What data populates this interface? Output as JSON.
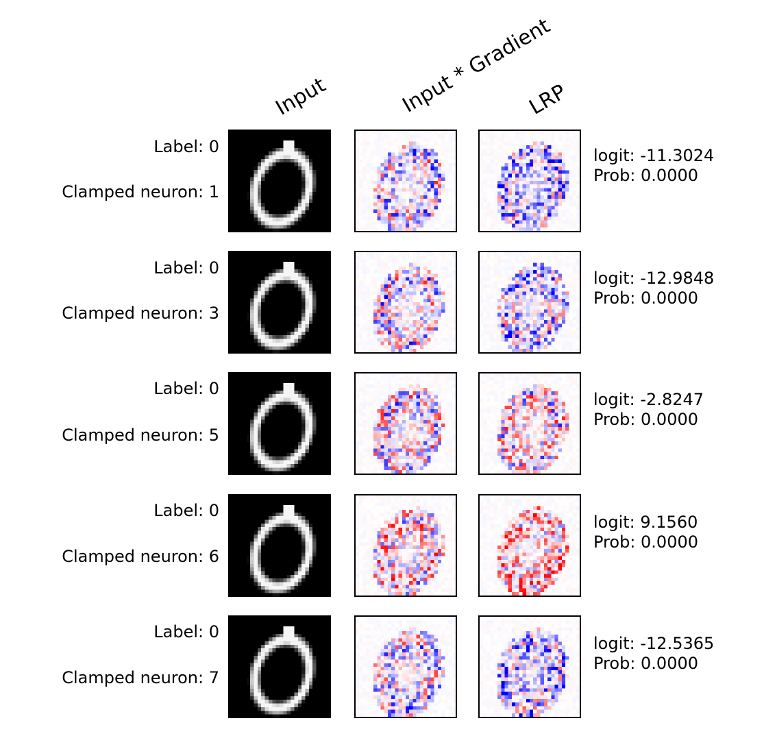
{
  "column_headers": {
    "input": "Input",
    "input_gradient": "Input * Gradient",
    "lrp": "LRP"
  },
  "rows": [
    {
      "label": "Label: 0",
      "clamped": "Clamped neuron: 1",
      "logit": "logit: -11.3024",
      "prob": "Prob: 0.0000"
    },
    {
      "label": "Label: 0",
      "clamped": "Clamped neuron: 3",
      "logit": "logit: -12.9848",
      "prob": "Prob: 0.0000"
    },
    {
      "label": "Label: 0",
      "clamped": "Clamped neuron: 5",
      "logit": "logit: -2.8247",
      "prob": "Prob: 0.0000"
    },
    {
      "label": "Label: 0",
      "clamped": "Clamped neuron: 6",
      "logit": "logit: 9.1560",
      "prob": "Prob: 0.0000"
    },
    {
      "label": "Label: 0",
      "clamped": "Clamped neuron: 7",
      "logit": "logit: -12.5365",
      "prob": "Prob: 0.0000"
    }
  ],
  "colors": {
    "positive": "#ff0000",
    "negative": "#0000ff",
    "neutral": "#ffffff",
    "input_background": "#000000",
    "input_stroke": "#ffffff"
  }
}
